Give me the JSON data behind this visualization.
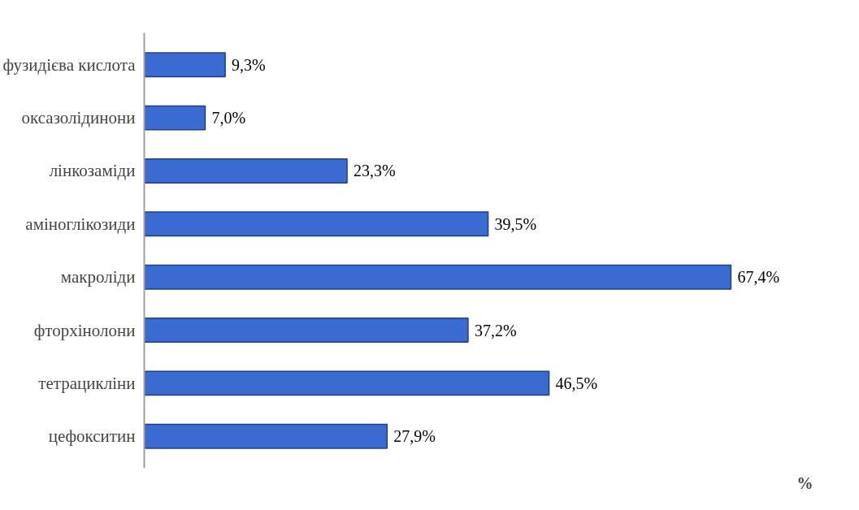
{
  "chart_data": {
    "type": "bar",
    "orientation": "horizontal",
    "xlabel": "%",
    "categories": [
      "фузидієва кислота",
      "оксазолідинони",
      "лінкозаміди",
      "аміноглікозиди",
      "макроліди",
      "фторхінолони",
      "тетрацикліни",
      "цефокситин"
    ],
    "values": [
      9.3,
      7.0,
      23.3,
      39.5,
      67.4,
      37.2,
      46.5,
      27.9
    ],
    "value_labels": [
      "9,3%",
      "7,0%",
      "23,3%",
      "39,5%",
      "67,4%",
      "37,2%",
      "46,5%",
      "27,9%"
    ],
    "color": "#3a6bd0",
    "grid": false
  }
}
